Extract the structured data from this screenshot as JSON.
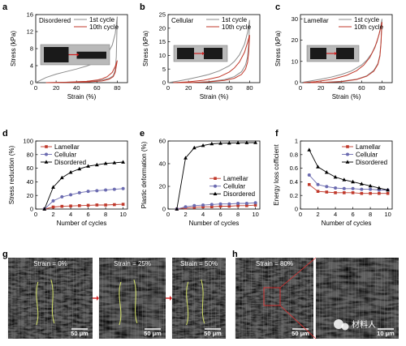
{
  "chart_data": [
    {
      "letter": "a",
      "type": "line",
      "title": "Disordered",
      "xlabel": "Strain (%)",
      "ylabel": "Stress (kPa)",
      "xlim": [
        0,
        90
      ],
      "ylim": [
        0,
        16
      ],
      "xticks": [
        0,
        20,
        40,
        60,
        80
      ],
      "yticks": [
        0,
        4,
        8,
        12,
        16
      ],
      "legend_position": "top-right",
      "series": [
        {
          "name": "1st cycle",
          "color": "#8c8c8c",
          "load": [
            [
              0,
              0
            ],
            [
              5,
              0.6
            ],
            [
              10,
              1.2
            ],
            [
              20,
              2.0
            ],
            [
              30,
              2.6
            ],
            [
              40,
              3.2
            ],
            [
              50,
              3.9
            ],
            [
              60,
              4.8
            ],
            [
              65,
              5.5
            ],
            [
              70,
              6.6
            ],
            [
              75,
              8.8
            ],
            [
              78,
              11.5
            ],
            [
              80,
              15.5
            ]
          ],
          "unload": [
            [
              80,
              15.5
            ],
            [
              79,
              6
            ],
            [
              78,
              3
            ],
            [
              76,
              1.6
            ],
            [
              72,
              1.0
            ],
            [
              65,
              0.6
            ],
            [
              50,
              0.3
            ],
            [
              35,
              0.15
            ],
            [
              20,
              0.05
            ],
            [
              10,
              0
            ]
          ]
        },
        {
          "name": "10th cycle",
          "color": "#c0392b",
          "load": [
            [
              10,
              0
            ],
            [
              30,
              0.1
            ],
            [
              50,
              0.3
            ],
            [
              60,
              0.6
            ],
            [
              65,
              0.9
            ],
            [
              70,
              1.4
            ],
            [
              75,
              2.4
            ],
            [
              78,
              3.8
            ],
            [
              80,
              5.2
            ]
          ],
          "unload": [
            [
              80,
              5.2
            ],
            [
              78,
              2.4
            ],
            [
              76,
              1.4
            ],
            [
              72,
              0.8
            ],
            [
              65,
              0.4
            ],
            [
              50,
              0.15
            ],
            [
              30,
              0.05
            ],
            [
              15,
              0
            ]
          ]
        }
      ]
    },
    {
      "letter": "b",
      "type": "line",
      "title": "Cellular",
      "xlabel": "Strain (%)",
      "ylabel": "Stress (kPa)",
      "xlim": [
        0,
        90
      ],
      "ylim": [
        0,
        25
      ],
      "xticks": [
        0,
        20,
        40,
        60,
        80
      ],
      "yticks": [
        0,
        5,
        10,
        15,
        20,
        25
      ],
      "legend_position": "top-right",
      "series": [
        {
          "name": "1st cycle",
          "color": "#8c8c8c",
          "load": [
            [
              0,
              0
            ],
            [
              10,
              0.6
            ],
            [
              20,
              1.3
            ],
            [
              30,
              2.1
            ],
            [
              40,
              3.0
            ],
            [
              50,
              4.3
            ],
            [
              60,
              6.2
            ],
            [
              65,
              7.8
            ],
            [
              70,
              10.2
            ],
            [
              75,
              14.2
            ],
            [
              78,
              18.5
            ],
            [
              80,
              23.0
            ]
          ],
          "unload": [
            [
              80,
              23.0
            ],
            [
              79,
              14
            ],
            [
              78,
              9.5
            ],
            [
              76,
              6.5
            ],
            [
              72,
              4.0
            ],
            [
              65,
              2.2
            ],
            [
              55,
              1.1
            ],
            [
              40,
              0.4
            ],
            [
              25,
              0.1
            ],
            [
              10,
              0
            ]
          ]
        },
        {
          "name": "10th cycle",
          "color": "#c0392b",
          "load": [
            [
              5,
              0
            ],
            [
              20,
              0.3
            ],
            [
              35,
              0.9
            ],
            [
              50,
              2.1
            ],
            [
              60,
              3.9
            ],
            [
              65,
              5.4
            ],
            [
              70,
              7.6
            ],
            [
              75,
              11.2
            ],
            [
              78,
              14.8
            ],
            [
              80,
              17.5
            ]
          ],
          "unload": [
            [
              80,
              17.5
            ],
            [
              79,
              11
            ],
            [
              78,
              7.5
            ],
            [
              76,
              5.0
            ],
            [
              72,
              3.0
            ],
            [
              65,
              1.6
            ],
            [
              55,
              0.8
            ],
            [
              40,
              0.3
            ],
            [
              25,
              0.1
            ],
            [
              10,
              0
            ]
          ]
        }
      ]
    },
    {
      "letter": "c",
      "type": "line",
      "title": "Lamellar",
      "xlabel": "Strain (%)",
      "ylabel": "Stress (kPa)",
      "xlim": [
        0,
        90
      ],
      "ylim": [
        0,
        32
      ],
      "xticks": [
        0,
        20,
        40,
        60,
        80
      ],
      "yticks": [
        0,
        10,
        20,
        30
      ],
      "legend_position": "top-right",
      "series": [
        {
          "name": "1st cycle",
          "color": "#8c8c8c",
          "load": [
            [
              0,
              0
            ],
            [
              10,
              0.8
            ],
            [
              20,
              1.6
            ],
            [
              30,
              2.6
            ],
            [
              40,
              3.8
            ],
            [
              50,
              5.5
            ],
            [
              60,
              8.3
            ],
            [
              65,
              10.5
            ],
            [
              70,
              13.8
            ],
            [
              75,
              19.0
            ],
            [
              78,
              24.5
            ],
            [
              80,
              30.0
            ]
          ],
          "unload": [
            [
              80,
              30.0
            ],
            [
              79,
              19
            ],
            [
              78,
              13
            ],
            [
              76,
              9
            ],
            [
              72,
              5.8
            ],
            [
              65,
              3.2
            ],
            [
              55,
              1.6
            ],
            [
              40,
              0.6
            ],
            [
              25,
              0.2
            ],
            [
              10,
              0
            ]
          ]
        },
        {
          "name": "10th cycle",
          "color": "#c0392b",
          "load": [
            [
              3,
              0
            ],
            [
              15,
              0.5
            ],
            [
              30,
              1.5
            ],
            [
              45,
              3.4
            ],
            [
              55,
              5.6
            ],
            [
              62,
              8.2
            ],
            [
              68,
              11.8
            ],
            [
              73,
              16.5
            ],
            [
              77,
              22.5
            ],
            [
              80,
              28.5
            ]
          ],
          "unload": [
            [
              80,
              28.5
            ],
            [
              79,
              18.5
            ],
            [
              78,
              12.5
            ],
            [
              76,
              8.6
            ],
            [
              72,
              5.4
            ],
            [
              65,
              3.0
            ],
            [
              55,
              1.5
            ],
            [
              40,
              0.5
            ],
            [
              25,
              0.15
            ],
            [
              10,
              0
            ]
          ]
        }
      ]
    },
    {
      "letter": "d",
      "type": "line",
      "title": "",
      "xlabel": "Number of cycles",
      "ylabel": "Stress reduction (%)",
      "xlim": [
        0,
        10.5
      ],
      "ylim": [
        0,
        100
      ],
      "xticks": [
        0,
        2,
        4,
        6,
        8,
        10
      ],
      "yticks": [
        0,
        20,
        40,
        60,
        80,
        100
      ],
      "legend_position": "top-left",
      "series": [
        {
          "name": "Lamellar",
          "marker": "square",
          "color": "#c0392b",
          "x": [
            1,
            2,
            3,
            4,
            5,
            6,
            7,
            8,
            9,
            10
          ],
          "y": [
            0,
            3,
            4,
            4.5,
            5,
            5.5,
            6,
            6,
            6.5,
            7
          ]
        },
        {
          "name": "Cellular",
          "marker": "circle",
          "color": "#6b6bb0",
          "x": [
            1,
            2,
            3,
            4,
            5,
            6,
            7,
            8,
            9,
            10
          ],
          "y": [
            0,
            12,
            18,
            21,
            24,
            26,
            27,
            28,
            29,
            30
          ]
        },
        {
          "name": "Disordered",
          "marker": "triangle",
          "color": "#000000",
          "x": [
            1,
            2,
            3,
            4,
            5,
            6,
            7,
            8,
            9,
            10
          ],
          "y": [
            0,
            32,
            46,
            54,
            59,
            63,
            65,
            67,
            68,
            69
          ]
        }
      ]
    },
    {
      "letter": "e",
      "type": "line",
      "title": "",
      "xlabel": "Number of cycles",
      "ylabel": "Plastic deformation (%)",
      "xlim": [
        0,
        10.5
      ],
      "ylim": [
        0,
        60
      ],
      "xticks": [
        0,
        2,
        4,
        6,
        8,
        10
      ],
      "yticks": [
        0,
        20,
        40,
        60
      ],
      "legend_position": "right",
      "series": [
        {
          "name": "Lamellar",
          "marker": "square",
          "color": "#c0392b",
          "x": [
            1,
            2,
            3,
            4,
            5,
            6,
            7,
            8,
            9,
            10
          ],
          "y": [
            0,
            1,
            1.5,
            2,
            2,
            2.5,
            2.5,
            3,
            3,
            3.5
          ]
        },
        {
          "name": "Cellular",
          "marker": "circle",
          "color": "#6b6bb0",
          "x": [
            1,
            2,
            3,
            4,
            5,
            6,
            7,
            8,
            9,
            10
          ],
          "y": [
            0,
            2,
            3,
            3.5,
            4,
            4.5,
            4.5,
            5,
            5,
            5.5
          ]
        },
        {
          "name": "Disordered",
          "marker": "triangle",
          "color": "#000000",
          "x": [
            1,
            2,
            3,
            4,
            5,
            6,
            7,
            8,
            9,
            10
          ],
          "y": [
            0,
            45,
            54,
            56,
            57.5,
            58,
            58.2,
            58.4,
            58.5,
            58.6
          ]
        }
      ]
    },
    {
      "letter": "f",
      "type": "line",
      "title": "",
      "xlabel": "Number of cycles",
      "ylabel": "Energy loss cofficient",
      "xlim": [
        0,
        10.5
      ],
      "ylim": [
        0,
        1.0
      ],
      "xticks": [
        0,
        2,
        4,
        6,
        8,
        10
      ],
      "yticks": [
        0,
        0.2,
        0.4,
        0.6,
        0.8,
        1.0
      ],
      "legend_position": "top-right",
      "series": [
        {
          "name": "Lamellar",
          "marker": "square",
          "color": "#c0392b",
          "x": [
            1,
            2,
            3,
            4,
            5,
            6,
            7,
            8,
            9,
            10
          ],
          "y": [
            0.36,
            0.26,
            0.25,
            0.24,
            0.24,
            0.24,
            0.23,
            0.23,
            0.23,
            0.23
          ]
        },
        {
          "name": "Cellular",
          "marker": "circle",
          "color": "#6b6bb0",
          "x": [
            1,
            2,
            3,
            4,
            5,
            6,
            7,
            8,
            9,
            10
          ],
          "y": [
            0.5,
            0.36,
            0.33,
            0.31,
            0.3,
            0.3,
            0.29,
            0.29,
            0.28,
            0.28
          ]
        },
        {
          "name": "Disordered",
          "marker": "triangle",
          "color": "#000000",
          "x": [
            1,
            2,
            3,
            4,
            5,
            6,
            7,
            8,
            9,
            10
          ],
          "y": [
            0.87,
            0.62,
            0.54,
            0.47,
            0.43,
            0.4,
            0.37,
            0.34,
            0.31,
            0.28
          ]
        }
      ]
    }
  ],
  "micrographs": {
    "g": {
      "letter": "g",
      "frames": [
        {
          "strain": "Strain = 0%",
          "scale": "50 μm"
        },
        {
          "strain": "Strain = 25%",
          "scale": "50 μm"
        },
        {
          "strain": "Strain = 50%",
          "scale": "50 μm"
        }
      ]
    },
    "h": {
      "letter": "h",
      "frames": [
        {
          "strain": "Strain = 80%",
          "scale": "50 μm"
        },
        {
          "strain": "",
          "scale": "10 μm"
        }
      ]
    },
    "watermark": "材料人"
  }
}
